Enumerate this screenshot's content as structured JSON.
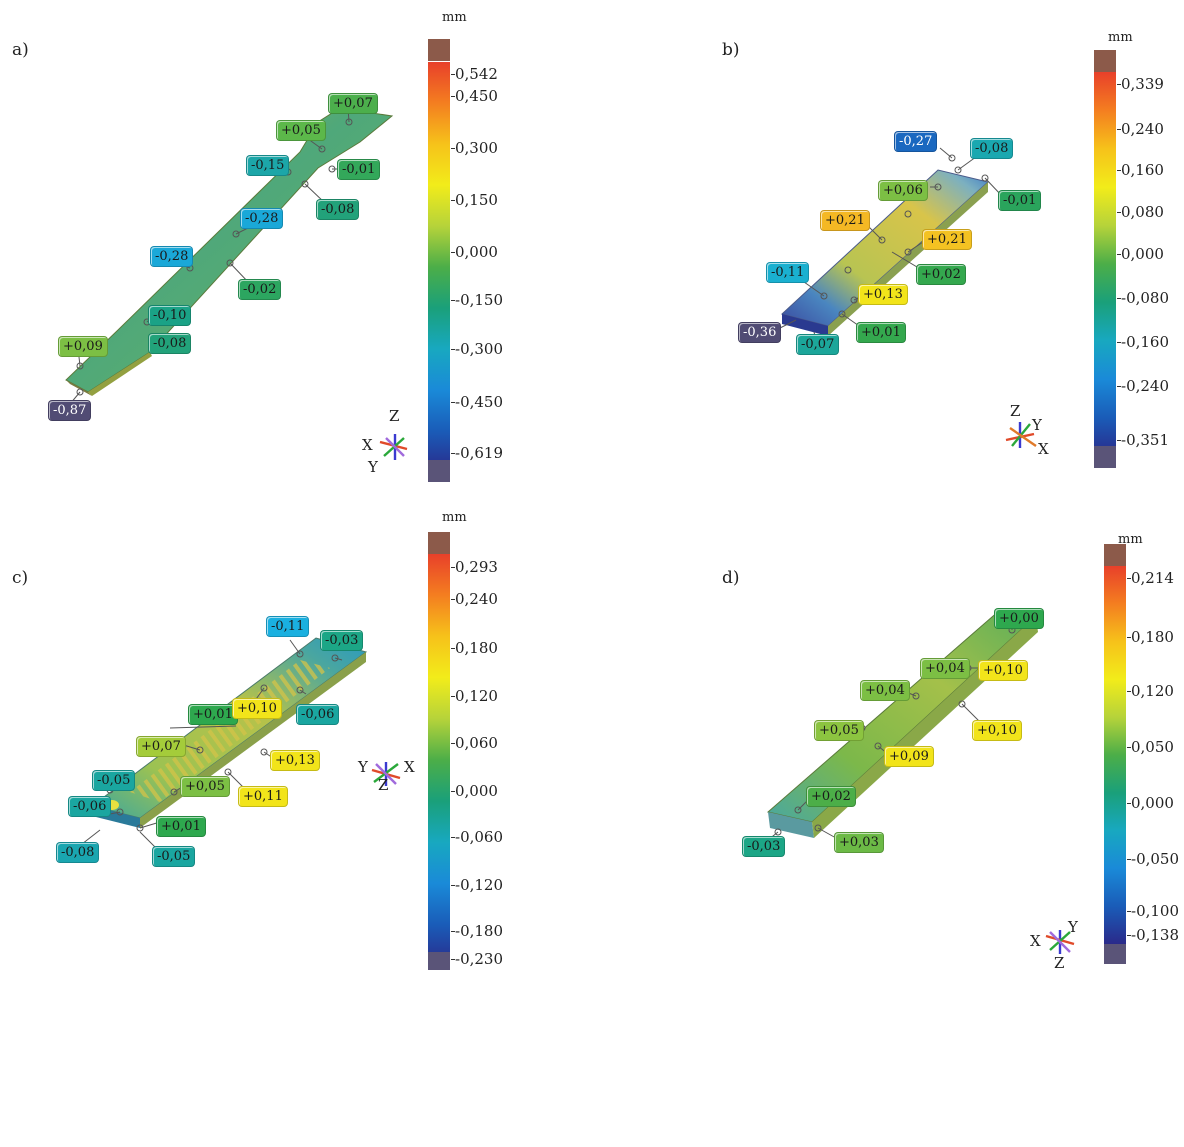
{
  "unit": "mm",
  "colors": {
    "cap_top": "#8c5a4a",
    "cap_bottom": "#5a5478",
    "gradient": [
      "#e8402a",
      "#f47e20",
      "#f6c21a",
      "#f2ec1a",
      "#b6d33a",
      "#4cae48",
      "#1aa07a",
      "#18a8c0",
      "#1a8ad8",
      "#1a5cb8",
      "#2a2a8a"
    ],
    "part_surface": "#b9c85a",
    "part_edge": "#6c7f3a"
  },
  "panels": [
    {
      "letter": "a)",
      "scale_ticks": [
        "0,542",
        "0,450",
        "0,300",
        "0,150",
        "0,000",
        "-0,150",
        "-0,300",
        "-0,450",
        "-0,619"
      ],
      "callouts": [
        {
          "text": "+0,07",
          "color": "#4caf4c"
        },
        {
          "text": "+0,05",
          "color": "#5cb84a"
        },
        {
          "text": "-0,15",
          "color": "#1ca6a8"
        },
        {
          "text": "-0,01",
          "color": "#33a85a"
        },
        {
          "text": "-0,08",
          "color": "#22a27a"
        },
        {
          "text": "-0,28",
          "color": "#1aa8d8"
        },
        {
          "text": "-0,28",
          "color": "#1aa8d8"
        },
        {
          "text": "-0,02",
          "color": "#2ca660"
        },
        {
          "text": "-0,10",
          "color": "#1aa286"
        },
        {
          "text": "+0,09",
          "color": "#7cbf44"
        },
        {
          "text": "-0,08",
          "color": "#22a27a"
        },
        {
          "text": "-0,87",
          "color": "#514c74",
          "dark": true
        }
      ],
      "axes": [
        "Z",
        "X",
        "Y"
      ]
    },
    {
      "letter": "b)",
      "scale_ticks": [
        "0,339",
        "0,240",
        "0,160",
        "0,080",
        "0,000",
        "-0,080",
        "-0,160",
        "-0,240",
        "-0,351"
      ],
      "callouts": [
        {
          "text": "-0,27",
          "color": "#1a68c0",
          "dark": true
        },
        {
          "text": "-0,08",
          "color": "#1aa8b0"
        },
        {
          "text": "+0,06",
          "color": "#7cbf44"
        },
        {
          "text": "-0,01",
          "color": "#2aa45c"
        },
        {
          "text": "+0,21",
          "color": "#f4b824"
        },
        {
          "text": "+0,21",
          "color": "#f4c222"
        },
        {
          "text": "-0,11",
          "color": "#1ab0d0"
        },
        {
          "text": "+0,02",
          "color": "#34a84e"
        },
        {
          "text": "+0,13",
          "color": "#f2e41a"
        },
        {
          "text": "-0,36",
          "color": "#514c74",
          "dark": true
        },
        {
          "text": "-0,07",
          "color": "#1ca69a"
        },
        {
          "text": "+0,01",
          "color": "#34a84e"
        }
      ],
      "axes": [
        "Z",
        "Y",
        "X"
      ]
    },
    {
      "letter": "c)",
      "scale_ticks": [
        "0,293",
        "0,240",
        "0,180",
        "0,120",
        "0,060",
        "0,000",
        "-0,060",
        "-0,120",
        "-0,180",
        "-0,230"
      ],
      "callouts": [
        {
          "text": "-0,11",
          "color": "#1ab0e0"
        },
        {
          "text": "-0,03",
          "color": "#1ca686"
        },
        {
          "text": "+0,01",
          "color": "#2ea84e"
        },
        {
          "text": "+0,10",
          "color": "#f2e41a"
        },
        {
          "text": "-0,06",
          "color": "#1aa6a0"
        },
        {
          "text": "+0,07",
          "color": "#a4cc3a"
        },
        {
          "text": "+0,13",
          "color": "#f2e41a"
        },
        {
          "text": "-0,05",
          "color": "#1aa6a0"
        },
        {
          "text": "+0,05",
          "color": "#7cbf44"
        },
        {
          "text": "+0,11",
          "color": "#f2e41a"
        },
        {
          "text": "-0,06",
          "color": "#1aa6a0"
        },
        {
          "text": "+0,01",
          "color": "#2ea84e"
        },
        {
          "text": "-0,08",
          "color": "#1aa6b0"
        },
        {
          "text": "-0,05",
          "color": "#1aa6a0"
        }
      ],
      "axes": [
        "Y",
        "Z",
        "X"
      ]
    },
    {
      "letter": "d)",
      "scale_ticks": [
        "0,214",
        "0,180",
        "0,120",
        "0,050",
        "0,000",
        "-0,050",
        "-0,100",
        "-0,138"
      ],
      "callouts": [
        {
          "text": "+0,00",
          "color": "#2ea84e"
        },
        {
          "text": "+0,04",
          "color": "#7cbf44"
        },
        {
          "text": "+0,10",
          "color": "#f2e41a"
        },
        {
          "text": "+0,04",
          "color": "#7cbf44"
        },
        {
          "text": "+0,05",
          "color": "#8cc440"
        },
        {
          "text": "+0,10",
          "color": "#f2e41a"
        },
        {
          "text": "+0,09",
          "color": "#f2e41a"
        },
        {
          "text": "+0,02",
          "color": "#4cae48"
        },
        {
          "text": "-0,03",
          "color": "#1ca686"
        },
        {
          "text": "+0,03",
          "color": "#6cba46"
        }
      ],
      "axes": [
        "Y",
        "X",
        "Z"
      ]
    }
  ]
}
